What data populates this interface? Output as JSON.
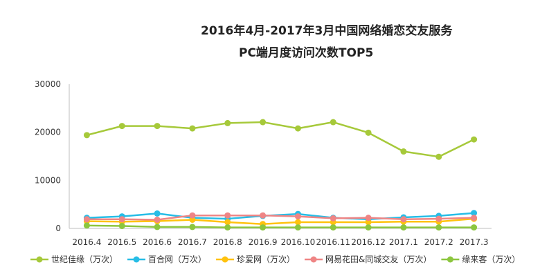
{
  "chart_data": {
    "type": "line",
    "title_line1": "2016年4月-2017年3月中国网络婚恋交友服务",
    "title_line2": "PC端月度访问次数TOP5",
    "categories": [
      "2016.4",
      "2016.5",
      "2016.6",
      "2016.7",
      "2016.8",
      "2016.9",
      "2016.10",
      "2016.11",
      "2016.12",
      "2017.1",
      "2017.2",
      "2017.3"
    ],
    "ylim": [
      0,
      30000
    ],
    "yticks": [
      0,
      10000,
      20000,
      30000
    ],
    "grid": false,
    "legend_position": "bottom",
    "series": [
      {
        "name": "世纪佳缘（万次）",
        "color": "#a6c93a",
        "values": [
          19400,
          21300,
          21300,
          20800,
          21900,
          22100,
          20800,
          22100,
          19900,
          16000,
          14900,
          18500
        ]
      },
      {
        "name": "百合网（万次）",
        "color": "#27bde6",
        "values": [
          2200,
          2500,
          3100,
          2200,
          2000,
          2600,
          3000,
          2200,
          1900,
          2300,
          2600,
          3200
        ]
      },
      {
        "name": "珍爱网（万次）",
        "color": "#ffc20e",
        "values": [
          1500,
          1400,
          1500,
          1800,
          1300,
          900,
          1300,
          1300,
          1300,
          1400,
          1400,
          2000
        ]
      },
      {
        "name": "网易花田&同城交友（万次）",
        "color": "#ef8585",
        "values": [
          1900,
          1900,
          1800,
          2700,
          2700,
          2700,
          2500,
          2100,
          2200,
          1900,
          2000,
          2200
        ]
      },
      {
        "name": "缘来客（万次）",
        "color": "#8cc63f",
        "values": [
          600,
          500,
          300,
          300,
          200,
          200,
          200,
          200,
          200,
          200,
          200,
          200
        ]
      }
    ]
  }
}
